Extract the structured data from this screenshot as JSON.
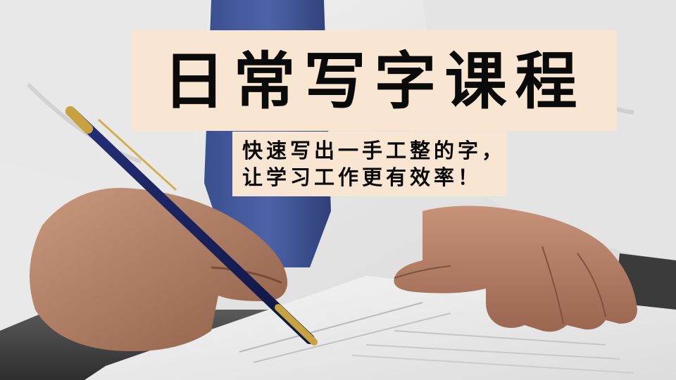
{
  "banner": {
    "title": "日常写字课程",
    "subtitle_line1": "快速写出一手工整的字，",
    "subtitle_line2": "让学习工作更有效率！",
    "background_color": "#f8e5d2"
  },
  "scene": {
    "description_icon": "hand-writing-with-pen"
  }
}
